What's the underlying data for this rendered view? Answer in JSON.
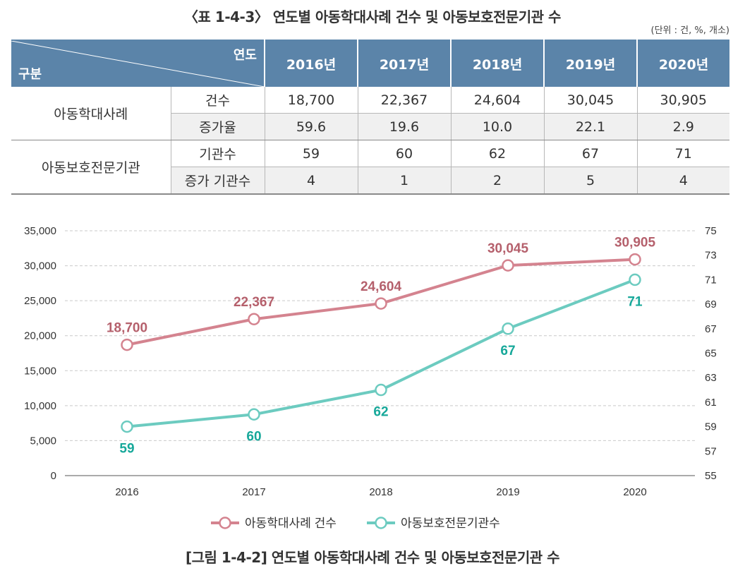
{
  "table": {
    "title": "〈표 1-4-3〉 연도별 아동학대사례 건수 및 아동보호전문기관 수",
    "unit_note": "(단위 : 건, %, 개소)",
    "corner_year_label": "연도",
    "corner_category_label": "구분",
    "years": [
      "2016년",
      "2017년",
      "2018년",
      "2019년",
      "2020년"
    ],
    "groups": [
      {
        "name": "아동학대사례",
        "rows": [
          {
            "label": "건수",
            "values": [
              "18,700",
              "22,367",
              "24,604",
              "30,045",
              "30,905"
            ]
          },
          {
            "label": "증가율",
            "values": [
              "59.6",
              "19.6",
              "10.0",
              "22.1",
              "2.9"
            ]
          }
        ]
      },
      {
        "name": "아동보호전문기관",
        "rows": [
          {
            "label": "기관수",
            "values": [
              "59",
              "60",
              "62",
              "67",
              "71"
            ]
          },
          {
            "label": "증가 기관수",
            "values": [
              "4",
              "1",
              "2",
              "5",
              "4"
            ]
          }
        ]
      }
    ]
  },
  "chart_data": {
    "type": "line",
    "title": "",
    "xlabel": "",
    "ylabel": "",
    "x": [
      "2016",
      "2017",
      "2018",
      "2019",
      "2020"
    ],
    "y_left": {
      "min": 0,
      "max": 35000,
      "ticks": [
        "0",
        "5,000",
        "10,000",
        "15,000",
        "20,000",
        "25,000",
        "30,000",
        "35,000"
      ]
    },
    "y_right": {
      "min": 55,
      "max": 75,
      "ticks": [
        "55",
        "57",
        "59",
        "61",
        "63",
        "65",
        "67",
        "69",
        "71",
        "73",
        "75"
      ]
    },
    "grid": "horizontal dashed",
    "legend_position": "bottom-center",
    "series": [
      {
        "name": "아동학대사례 건수",
        "axis": "left",
        "color": "#d4838f",
        "label_color": "#b5606c",
        "values": [
          18700,
          22367,
          24604,
          30045,
          30905
        ],
        "labels": [
          "18,700",
          "22,367",
          "24,604",
          "30,045",
          "30,905"
        ]
      },
      {
        "name": "아동보호전문기관수",
        "axis": "right",
        "color": "#6ccbc0",
        "label_color": "#17a89a",
        "values": [
          59,
          60,
          62,
          67,
          71
        ],
        "labels": [
          "59",
          "60",
          "62",
          "67",
          "71"
        ]
      }
    ]
  },
  "caption": "[그림 1-4-2] 연도별 아동학대사례 건수 및 아동보호전문기관 수"
}
